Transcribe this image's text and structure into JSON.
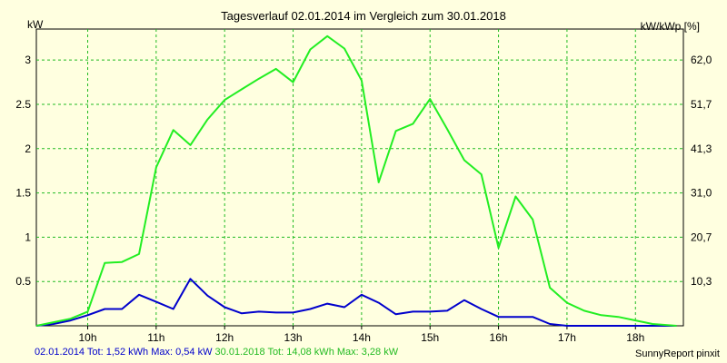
{
  "chart_data": {
    "type": "line",
    "title": "Tagesverlauf 02.01.2014 im Vergleich zum 30.01.2018",
    "ylabel_left": "kW",
    "ylabel_right": "kW/kWp [%]",
    "x_ticks": [
      "10h",
      "11h",
      "12h",
      "13h",
      "14h",
      "15h",
      "16h",
      "17h",
      "18h"
    ],
    "y_ticks_left": [
      "0.5",
      "1",
      "1.5",
      "2",
      "2.5",
      "3"
    ],
    "y_ticks_right": [
      "10,3",
      "20,7",
      "31,0",
      "41,3",
      "51,7",
      "62,0"
    ],
    "xlim": [
      9.25,
      18.7
    ],
    "ylim": [
      0,
      3.35
    ],
    "grid": true,
    "colors": {
      "background": "#ffffe0",
      "grid": "#22bb22",
      "series_2014": "#0000cc",
      "series_2018": "#22ee22"
    },
    "series": [
      {
        "name": "02.01.2014",
        "color": "#0000cc",
        "points": [
          [
            9.25,
            0
          ],
          [
            9.5,
            0.02
          ],
          [
            9.75,
            0.06
          ],
          [
            10.0,
            0.12
          ],
          [
            10.25,
            0.19
          ],
          [
            10.5,
            0.19
          ],
          [
            10.75,
            0.35
          ],
          [
            11.0,
            0.27
          ],
          [
            11.25,
            0.19
          ],
          [
            11.5,
            0.53
          ],
          [
            11.75,
            0.34
          ],
          [
            12.0,
            0.21
          ],
          [
            12.25,
            0.14
          ],
          [
            12.5,
            0.16
          ],
          [
            12.75,
            0.15
          ],
          [
            13.0,
            0.15
          ],
          [
            13.25,
            0.19
          ],
          [
            13.5,
            0.25
          ],
          [
            13.75,
            0.21
          ],
          [
            14.0,
            0.35
          ],
          [
            14.25,
            0.26
          ],
          [
            14.5,
            0.13
          ],
          [
            14.75,
            0.16
          ],
          [
            15.0,
            0.16
          ],
          [
            15.25,
            0.17
          ],
          [
            15.5,
            0.29
          ],
          [
            15.75,
            0.19
          ],
          [
            16.0,
            0.1
          ],
          [
            16.25,
            0.1
          ],
          [
            16.5,
            0.1
          ],
          [
            16.75,
            0.02
          ],
          [
            17.0,
            0
          ],
          [
            18.6,
            0
          ]
        ]
      },
      {
        "name": "30.01.2018",
        "color": "#22ee22",
        "points": [
          [
            9.25,
            0
          ],
          [
            9.5,
            0.04
          ],
          [
            9.75,
            0.08
          ],
          [
            10.0,
            0.16
          ],
          [
            10.25,
            0.71
          ],
          [
            10.5,
            0.72
          ],
          [
            10.75,
            0.81
          ],
          [
            11.0,
            1.79
          ],
          [
            11.25,
            2.21
          ],
          [
            11.5,
            2.04
          ],
          [
            11.75,
            2.33
          ],
          [
            12.0,
            2.55
          ],
          [
            12.25,
            2.67
          ],
          [
            12.5,
            2.79
          ],
          [
            12.75,
            2.9
          ],
          [
            13.0,
            2.75
          ],
          [
            13.25,
            3.12
          ],
          [
            13.5,
            3.27
          ],
          [
            13.75,
            3.13
          ],
          [
            14.0,
            2.77
          ],
          [
            14.25,
            1.62
          ],
          [
            14.5,
            2.2
          ],
          [
            14.75,
            2.28
          ],
          [
            15.0,
            2.56
          ],
          [
            15.25,
            2.22
          ],
          [
            15.5,
            1.87
          ],
          [
            15.75,
            1.71
          ],
          [
            16.0,
            0.88
          ],
          [
            16.25,
            1.46
          ],
          [
            16.5,
            1.2
          ],
          [
            16.75,
            0.43
          ],
          [
            17.0,
            0.26
          ],
          [
            17.25,
            0.17
          ],
          [
            17.5,
            0.12
          ],
          [
            17.75,
            0.1
          ],
          [
            18.0,
            0.06
          ],
          [
            18.25,
            0.02
          ],
          [
            18.6,
            0
          ]
        ]
      }
    ]
  },
  "footer": {
    "series_2014_summary": "02.01.2014 Tot: 1,52 kWh Max: 0,54 kW",
    "series_2018_summary": "30.01.2018 Tot: 14,08 kWh Max: 3,28 kW",
    "credit": "SunnyReport pinxit"
  }
}
